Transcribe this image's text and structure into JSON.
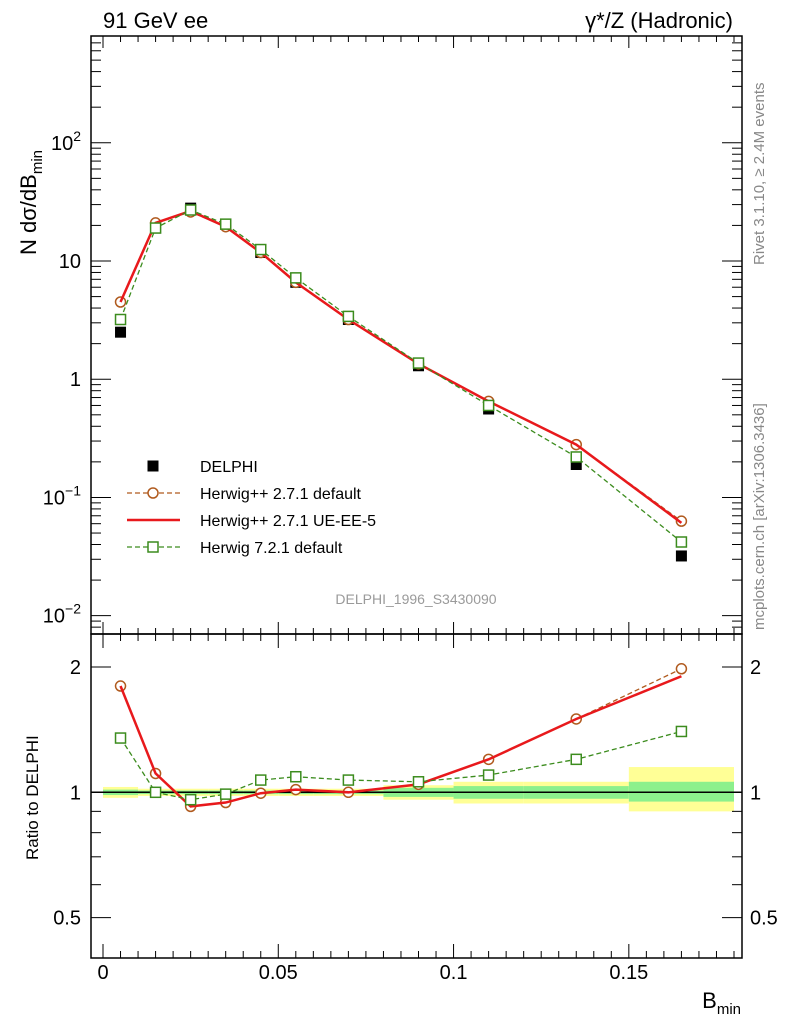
{
  "header": {
    "left": "91 GeV ee",
    "right": "γ*/Z (Hadronic)"
  },
  "side_text": {
    "rivet": "Rivet 3.1.10, ≥ 2.4M events",
    "mcplots": "mcplots.cern.ch [arXiv:1306.3436]"
  },
  "analysis_tag": "DELPHI_1996_S3430090",
  "colors": {
    "data": "#000000",
    "herwigpp_default": "#b05a1e",
    "herwigpp_ueee5": "#e8191c",
    "herwig7_default": "#3c8c1e",
    "band_inner": "#8cf08c",
    "band_outer": "#ffff96"
  },
  "chart_data": [
    {
      "type": "line",
      "panel": "main",
      "ylabel": {
        "main": "N dσ/dB",
        "sub": "min"
      },
      "yscale": "log",
      "ylim": [
        0.007,
        800
      ],
      "xlim": [
        -0.004,
        0.18
      ],
      "y_tick_labels": [
        "10",
        "2",
        "10",
        "1",
        "10",
        "−1",
        "10",
        "−2"
      ],
      "y_ticks": [
        {
          "value": 100,
          "label": "10",
          "exp": "2"
        },
        {
          "value": 10,
          "label": "10",
          "exp": ""
        },
        {
          "value": 1,
          "label": "1",
          "exp": ""
        },
        {
          "value": 0.1,
          "label": "10",
          "exp": "−1"
        },
        {
          "value": 0.01,
          "label": "10",
          "exp": "−2"
        }
      ],
      "x": [
        0.005,
        0.015,
        0.025,
        0.035,
        0.045,
        0.055,
        0.07,
        0.09,
        0.11,
        0.135,
        0.165
      ],
      "series": [
        {
          "name": "DELPHI",
          "key": "data",
          "style": "marker-square-filled",
          "values": [
            2.5,
            19.0,
            28.0,
            20.5,
            11.8,
            6.6,
            3.2,
            1.3,
            0.56,
            0.19,
            0.032
          ]
        },
        {
          "name": "Herwig++ 2.7.1 default",
          "key": "herwigpp_default",
          "style": "dashed-circle",
          "values": [
            4.5,
            21.0,
            26.0,
            19.5,
            11.8,
            6.6,
            3.2,
            1.35,
            0.65,
            0.28,
            0.063
          ]
        },
        {
          "name": "Herwig++ 2.7.1 UE-EE-5",
          "key": "herwigpp_ueee5",
          "style": "solid",
          "values": [
            4.5,
            21.0,
            26.5,
            19.5,
            11.8,
            6.6,
            3.2,
            1.35,
            0.65,
            0.28,
            0.061
          ]
        },
        {
          "name": "Herwig 7.2.1 default",
          "key": "herwig7_default",
          "style": "dashed-square",
          "values": [
            3.2,
            19.0,
            27.0,
            20.5,
            12.5,
            7.2,
            3.4,
            1.37,
            0.6,
            0.22,
            0.042
          ]
        }
      ],
      "legend_position": "lower-left"
    },
    {
      "type": "line",
      "panel": "ratio",
      "ylabel": "Ratio to DELPHI",
      "yscale": "log",
      "ylim": [
        0.4,
        2.4
      ],
      "y_ticks": [
        {
          "value": 2,
          "label": "2"
        },
        {
          "value": 1,
          "label": "1"
        },
        {
          "value": 0.5,
          "label": "0.5"
        }
      ],
      "xlabel": {
        "main": "B",
        "sub": "min"
      },
      "x_ticks": [
        {
          "value": 0,
          "label": "0"
        },
        {
          "value": 0.05,
          "label": "0.05"
        },
        {
          "value": 0.1,
          "label": "0.1"
        },
        {
          "value": 0.15,
          "label": "0.15"
        }
      ],
      "x": [
        0.005,
        0.015,
        0.025,
        0.035,
        0.045,
        0.055,
        0.07,
        0.09,
        0.11,
        0.135,
        0.165
      ],
      "series": [
        {
          "name": "Herwig++ 2.7.1 default",
          "key": "herwigpp_default",
          "style": "dashed-circle",
          "values": [
            1.8,
            1.11,
            0.925,
            0.945,
            0.995,
            1.015,
            1.0,
            1.045,
            1.2,
            1.5,
            1.98
          ]
        },
        {
          "name": "Herwig++ 2.7.1 UE-EE-5",
          "key": "herwigpp_ueee5",
          "style": "solid",
          "values": [
            1.8,
            1.11,
            0.925,
            0.945,
            0.995,
            1.015,
            1.0,
            1.045,
            1.2,
            1.5,
            1.9
          ]
        },
        {
          "name": "Herwig 7.2.1 default",
          "key": "herwig7_default",
          "style": "dashed-square",
          "values": [
            1.35,
            1.0,
            0.96,
            0.99,
            1.07,
            1.09,
            1.07,
            1.06,
            1.1,
            1.2,
            1.4
          ]
        }
      ],
      "bands": [
        {
          "x0": 0.0,
          "x1": 0.01,
          "inner": [
            0.985,
            1.015
          ],
          "outer": [
            0.97,
            1.03
          ]
        },
        {
          "x0": 0.01,
          "x1": 0.02,
          "inner": [
            0.99,
            1.01
          ],
          "outer": [
            0.98,
            1.02
          ]
        },
        {
          "x0": 0.02,
          "x1": 0.03,
          "inner": [
            0.99,
            1.01
          ],
          "outer": [
            0.98,
            1.02
          ]
        },
        {
          "x0": 0.03,
          "x1": 0.04,
          "inner": [
            0.99,
            1.01
          ],
          "outer": [
            0.98,
            1.02
          ]
        },
        {
          "x0": 0.04,
          "x1": 0.05,
          "inner": [
            0.99,
            1.01
          ],
          "outer": [
            0.98,
            1.02
          ]
        },
        {
          "x0": 0.05,
          "x1": 0.06,
          "inner": [
            0.99,
            1.01
          ],
          "outer": [
            0.98,
            1.02
          ]
        },
        {
          "x0": 0.06,
          "x1": 0.08,
          "inner": [
            0.99,
            1.01
          ],
          "outer": [
            0.98,
            1.02
          ]
        },
        {
          "x0": 0.08,
          "x1": 0.1,
          "inner": [
            0.975,
            1.025
          ],
          "outer": [
            0.96,
            1.04
          ]
        },
        {
          "x0": 0.1,
          "x1": 0.12,
          "inner": [
            0.965,
            1.035
          ],
          "outer": [
            0.94,
            1.06
          ]
        },
        {
          "x0": 0.12,
          "x1": 0.15,
          "inner": [
            0.965,
            1.035
          ],
          "outer": [
            0.94,
            1.06
          ]
        },
        {
          "x0": 0.15,
          "x1": 0.18,
          "inner": [
            0.95,
            1.06
          ],
          "outer": [
            0.9,
            1.15
          ]
        }
      ]
    }
  ]
}
